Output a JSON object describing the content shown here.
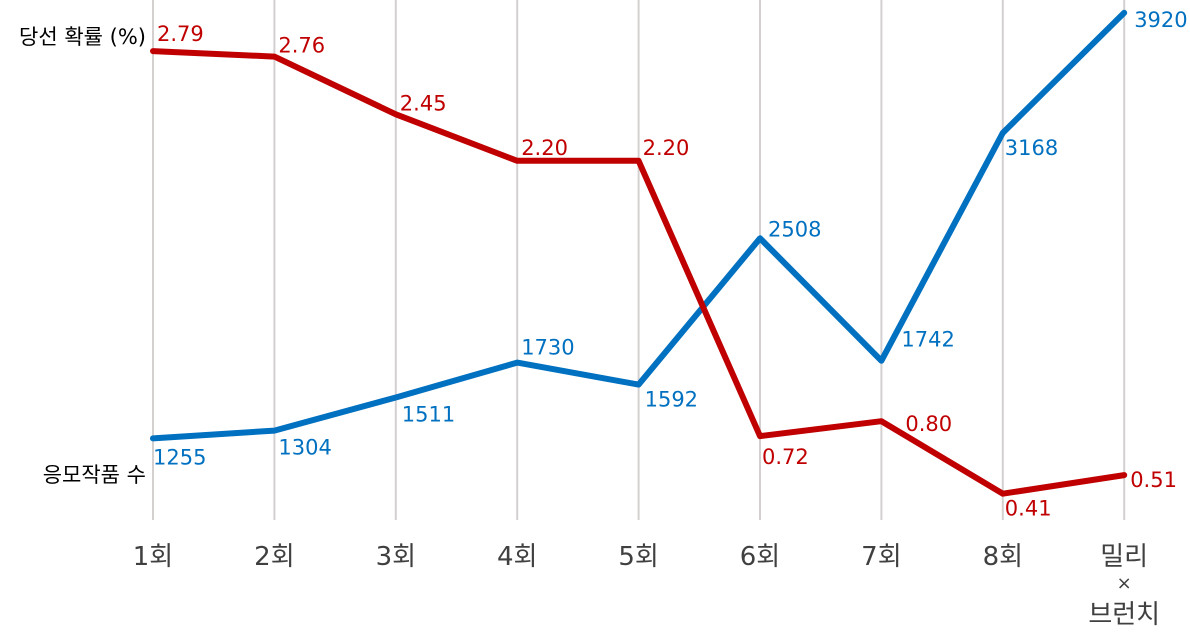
{
  "chart_data": {
    "type": "line",
    "title": "",
    "xlabel": "",
    "ylabel": "",
    "grid": "vertical",
    "categories": [
      "1회",
      "2회",
      "3회",
      "4회",
      "5회",
      "6회",
      "7회",
      "8회",
      [
        "밀리",
        "×",
        "브런치"
      ]
    ],
    "series": [
      {
        "name": "당선 확률 (%)",
        "color": "#c00000",
        "values": [
          2.79,
          2.76,
          2.45,
          2.2,
          2.2,
          0.72,
          0.8,
          0.41,
          0.51
        ],
        "labels": [
          "2.79",
          "2.76",
          "2.45",
          "2.20",
          "2.20",
          "0.72",
          "0.80",
          "0.41",
          "0.51"
        ],
        "ylim": [
          0,
          3
        ]
      },
      {
        "name": "응모작품 수",
        "color": "#0070c0",
        "values": [
          1255,
          1304,
          1511,
          1730,
          1592,
          2508,
          1742,
          3168,
          3920
        ],
        "labels": [
          "1255",
          "1304",
          "1511",
          "1730",
          "1592",
          "2508",
          "1742",
          "3168",
          "3920"
        ],
        "ylim": [
          400,
          4000
        ]
      }
    ]
  }
}
